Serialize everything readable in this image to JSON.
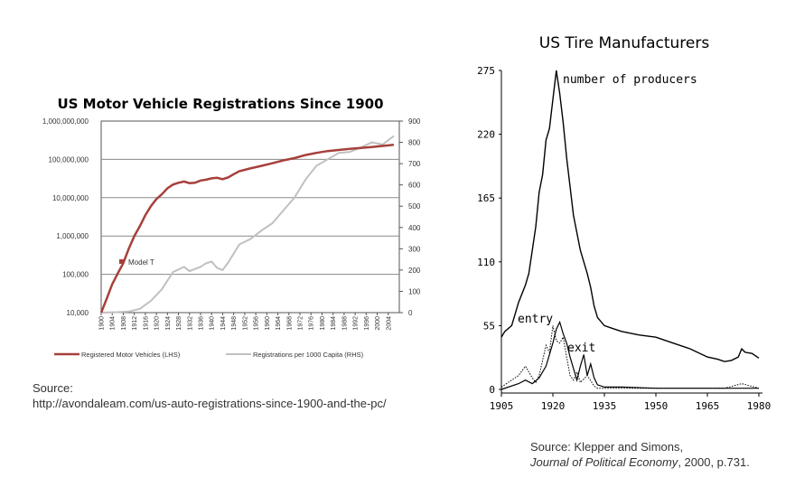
{
  "charts": {
    "left": {
      "title": "US Motor Vehicle Registrations Since 1900",
      "y_left_ticks": [
        "1,000,000,000",
        "100,000,000",
        "10,000,000",
        "1,000,000",
        "100,000",
        "10,000"
      ],
      "y_right_ticks": [
        "900",
        "800",
        "700",
        "600",
        "500",
        "400",
        "300",
        "200",
        "100",
        "0"
      ],
      "x_ticks": [
        "1900",
        "1904",
        "1908",
        "1912",
        "1916",
        "1920",
        "1924",
        "1928",
        "1932",
        "1936",
        "1940",
        "1944",
        "1948",
        "1952",
        "1956",
        "1960",
        "1964",
        "1968",
        "1972",
        "1976",
        "1980",
        "1984",
        "1988",
        "1992",
        "1996",
        "2000",
        "2004"
      ],
      "annotation": "Model T",
      "legend": [
        "Registered Motor Vehicles (LHS)",
        "Registrations per 1000 Capita (RHS)"
      ]
    },
    "right": {
      "title": "US Tire Manufacturers",
      "y_ticks": [
        "275",
        "220",
        "165",
        "110",
        "55",
        "0"
      ],
      "x_ticks": [
        "1905",
        "1920",
        "1935",
        "1950",
        "1965",
        "1980"
      ],
      "labels": {
        "producers": "number of producers",
        "entry": "entry",
        "exit": "exit"
      }
    }
  },
  "sources": {
    "left_label": "Source:",
    "left_url": "http://avondaleam.com/us-auto-registrations-since-1900-and-the-pc/",
    "right_line1": "Source: Klepper and Simons,",
    "right_journal": "Journal of Political Economy",
    "right_rest": ", 2000, p.731."
  },
  "chart_data": [
    {
      "type": "line",
      "title": "US Motor Vehicle Registrations Since 1900",
      "xlabel": "",
      "ylabel": "",
      "y_scale_left": "log",
      "ylim_left": [
        10000,
        1000000000
      ],
      "ylim_right": [
        0,
        900
      ],
      "xlim": [
        1900,
        2008
      ],
      "legend_position": "bottom",
      "series": [
        {
          "name": "Registered Motor Vehicles (LHS)",
          "axis": "left",
          "color": "#a6403b",
          "x": [
            1900,
            1902,
            1904,
            1906,
            1908,
            1910,
            1912,
            1914,
            1916,
            1918,
            1920,
            1922,
            1924,
            1926,
            1928,
            1930,
            1932,
            1934,
            1936,
            1938,
            1940,
            1942,
            1944,
            1946,
            1948,
            1950,
            1954,
            1958,
            1962,
            1966,
            1970,
            1974,
            1978,
            1982,
            1986,
            1990,
            1994,
            1998,
            2002,
            2006
          ],
          "values": [
            8000,
            23000,
            55000,
            105000,
            195000,
            470000,
            1000000,
            1800000,
            3500000,
            6000000,
            9200000,
            12300000,
            17600000,
            22000000,
            24500000,
            26500000,
            24000000,
            24500000,
            28000000,
            29500000,
            32000000,
            33000000,
            30500000,
            34000000,
            41000000,
            49000000,
            58000000,
            67500000,
            79000000,
            94000000,
            108000000,
            130000000,
            148000000,
            165000000,
            176000000,
            188000000,
            198000000,
            211000000,
            225000000,
            240000000
          ]
        },
        {
          "name": "Registrations per 1000 Capita (RHS)",
          "axis": "right",
          "color": "#c0c0c0",
          "x": [
            1900,
            1906,
            1910,
            1914,
            1918,
            1922,
            1926,
            1930,
            1932,
            1934,
            1936,
            1938,
            1940,
            1942,
            1944,
            1946,
            1950,
            1954,
            1958,
            1962,
            1966,
            1970,
            1974,
            1978,
            1982,
            1986,
            1990,
            1994,
            1998,
            2002,
            2006
          ],
          "values": [
            0,
            2,
            5,
            18,
            55,
            110,
            190,
            215,
            195,
            205,
            215,
            232,
            240,
            210,
            200,
            235,
            320,
            345,
            385,
            420,
            480,
            540,
            625,
            690,
            720,
            750,
            755,
            775,
            800,
            790,
            830
          ]
        }
      ]
    },
    {
      "type": "line",
      "title": "US Tire Manufacturers",
      "xlabel": "",
      "ylabel": "",
      "ylim": [
        0,
        275
      ],
      "xlim": [
        1905,
        1980
      ],
      "series": [
        {
          "name": "number of producers",
          "x": [
            1905,
            1906,
            1908,
            1910,
            1912,
            1913,
            1914,
            1915,
            1916,
            1917,
            1918,
            1919,
            1920,
            1921,
            1922,
            1923,
            1924,
            1925,
            1926,
            1927,
            1928,
            1929,
            1930,
            1931,
            1932,
            1933,
            1935,
            1938,
            1940,
            1945,
            1950,
            1955,
            1960,
            1965,
            1968,
            1970,
            1972,
            1974,
            1975,
            1976,
            1978,
            1980
          ],
          "values": [
            45,
            50,
            55,
            75,
            90,
            100,
            120,
            140,
            170,
            185,
            215,
            225,
            250,
            275,
            255,
            230,
            200,
            175,
            150,
            135,
            120,
            110,
            100,
            88,
            72,
            62,
            55,
            52,
            50,
            47,
            45,
            40,
            35,
            28,
            26,
            24,
            25,
            28,
            35,
            32,
            31,
            27
          ]
        },
        {
          "name": "entry",
          "x": [
            1905,
            1908,
            1910,
            1912,
            1914,
            1915,
            1916,
            1917,
            1918,
            1919,
            1920,
            1921,
            1922,
            1923,
            1924,
            1925,
            1926,
            1927,
            1928,
            1930,
            1932,
            1933,
            1935,
            1940,
            1950,
            1960,
            1970,
            1975,
            1980
          ],
          "values": [
            2,
            8,
            12,
            20,
            10,
            6,
            12,
            25,
            38,
            32,
            55,
            42,
            40,
            45,
            28,
            12,
            8,
            15,
            6,
            12,
            3,
            1,
            1,
            1,
            1,
            1,
            1,
            5,
            1
          ]
        },
        {
          "name": "exit",
          "x": [
            1905,
            1910,
            1912,
            1914,
            1916,
            1918,
            1920,
            1921,
            1922,
            1923,
            1924,
            1925,
            1926,
            1927,
            1928,
            1929,
            1930,
            1931,
            1932,
            1933,
            1935,
            1940,
            1950,
            1960,
            1970,
            1980
          ],
          "values": [
            0,
            5,
            8,
            5,
            10,
            20,
            40,
            52,
            58,
            48,
            40,
            28,
            18,
            8,
            20,
            30,
            12,
            22,
            10,
            4,
            2,
            2,
            1,
            1,
            1,
            1
          ]
        }
      ]
    }
  ]
}
